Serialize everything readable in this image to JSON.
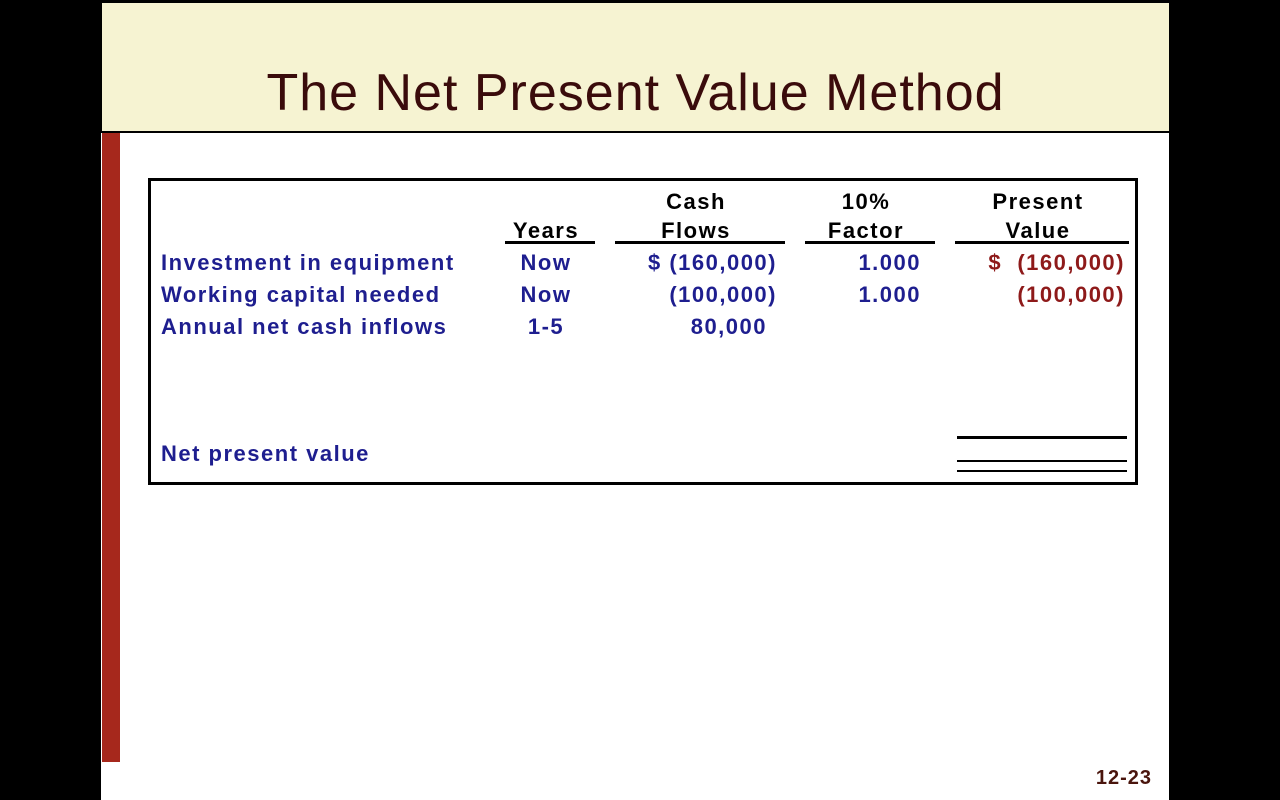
{
  "slide": {
    "title": "The Net Present Value Method",
    "page_number": "12-23"
  },
  "colors": {
    "background": "#000000",
    "title_band": "#f6f3d2",
    "title_text": "#3a0b0b",
    "accent_bar": "#a6281c",
    "table_header_text": "#000000",
    "table_body_navy": "#1e1e8f",
    "present_value_red": "#8e1a1a",
    "page_number_text": "#4a150d"
  },
  "table": {
    "headers": {
      "years": {
        "line1": "",
        "line2": "Years"
      },
      "cash_flows": {
        "line1": "Cash",
        "line2": "Flows"
      },
      "factor": {
        "line1": "10%",
        "line2": "Factor"
      },
      "present_value": {
        "line1": "Present",
        "line2": "Value"
      }
    },
    "rows": [
      {
        "label": "Investment in equipment",
        "years": "Now",
        "cash_flows": "$ (160,000)",
        "factor": "1.000",
        "present_value": "$  (160,000)"
      },
      {
        "label": "Working capital needed",
        "years": "Now",
        "cash_flows": "(100,000)",
        "factor": "1.000",
        "present_value": "(100,000)"
      },
      {
        "label": "Annual net cash inflows",
        "years": "1-5",
        "cash_flows": "80,000",
        "factor": "",
        "present_value": ""
      }
    ],
    "total_row": {
      "label": "Net present value",
      "present_value": ""
    }
  }
}
